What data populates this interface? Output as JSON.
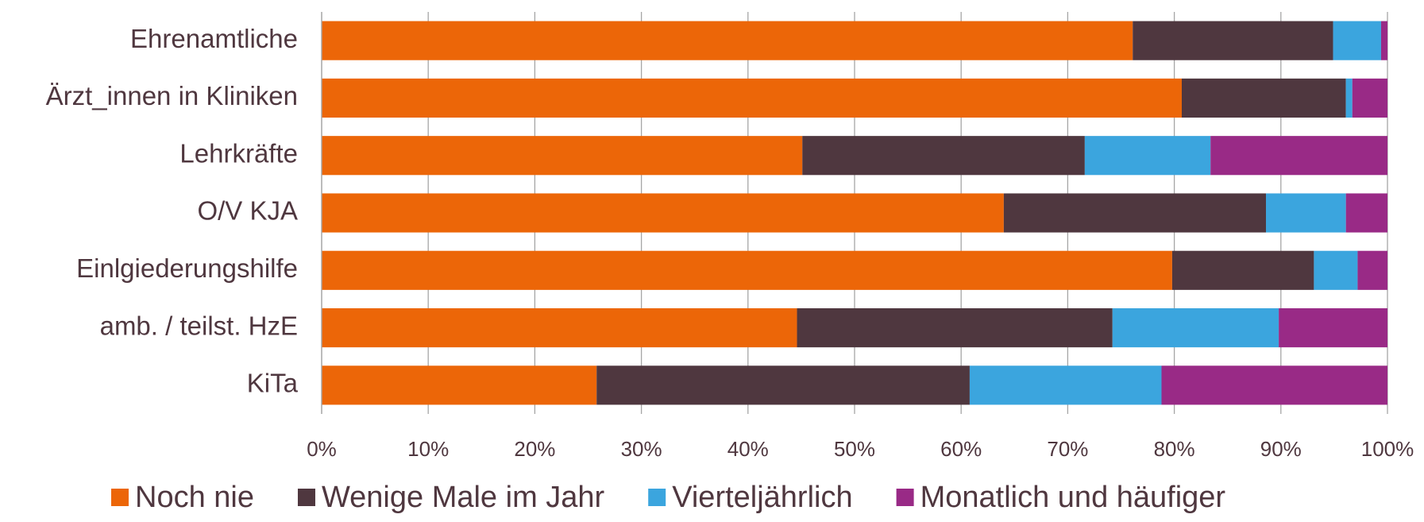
{
  "chart_data": {
    "type": "stacked-barh",
    "categories": [
      "Ehrenamtliche",
      "Ärzt_innen in Kliniken",
      "Lehrkräfte",
      "O/V KJA",
      "Einlgiederungshilfe",
      "amb. / teilst. HzE",
      "KiTa"
    ],
    "series": [
      {
        "name": "Noch nie",
        "color": "#ec6608",
        "values": [
          76.1,
          80.7,
          45.1,
          64.0,
          79.8,
          44.6,
          25.8
        ]
      },
      {
        "name": "Wenige Male im Jahr",
        "color": "#4f373f",
        "values": [
          18.8,
          15.4,
          26.5,
          24.6,
          13.3,
          29.6,
          35.0
        ]
      },
      {
        "name": "Vierteljährlich",
        "color": "#3ba5de",
        "values": [
          4.5,
          0.6,
          11.8,
          7.5,
          4.1,
          15.6,
          18.0
        ]
      },
      {
        "name": "Monatlich und häufiger",
        "color": "#992a86",
        "values": [
          0.6,
          3.3,
          16.6,
          3.9,
          2.8,
          10.2,
          21.2
        ]
      }
    ],
    "xlim": [
      0,
      100
    ],
    "xticks": [
      {
        "value": 0,
        "label": "0%"
      },
      {
        "value": 10,
        "label": "10%"
      },
      {
        "value": 20,
        "label": "20%"
      },
      {
        "value": 30,
        "label": "30%"
      },
      {
        "value": 40,
        "label": "40%"
      },
      {
        "value": 50,
        "label": "50%"
      },
      {
        "value": 60,
        "label": "60%"
      },
      {
        "value": 70,
        "label": "70%"
      },
      {
        "value": 80,
        "label": "80%"
      },
      {
        "value": 90,
        "label": "90%"
      },
      {
        "value": 100,
        "label": "100%"
      }
    ],
    "grid": true,
    "legend": "bottom"
  }
}
